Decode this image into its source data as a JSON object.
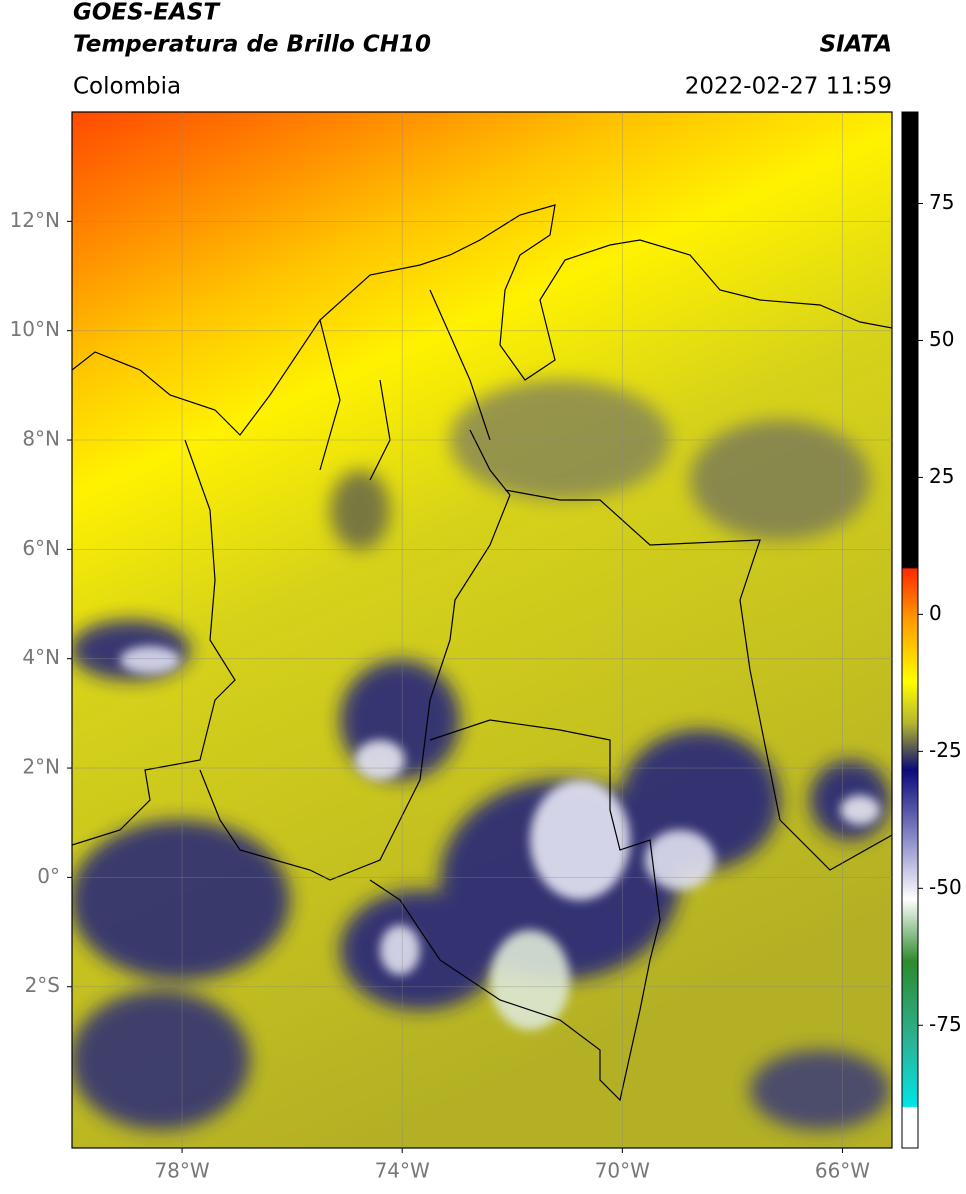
{
  "header": {
    "title": "GOES-EAST",
    "subtitle": "Temperatura de Brillo CH10",
    "source": "SIATA",
    "region": "Colombia",
    "datetime": "2022-02-27 11:59"
  },
  "map": {
    "xlim": [
      -80,
      -65.1
    ],
    "ylim": [
      -4.95,
      14
    ],
    "xticks": [
      {
        "value": -78,
        "label": "78°W"
      },
      {
        "value": -74,
        "label": "74°W"
      },
      {
        "value": -70,
        "label": "70°W"
      },
      {
        "value": -66,
        "label": "66°W"
      }
    ],
    "yticks": [
      {
        "value": 12,
        "label": "12°N"
      },
      {
        "value": 10,
        "label": "10°N"
      },
      {
        "value": 8,
        "label": "8°N"
      },
      {
        "value": 6,
        "label": "6°N"
      },
      {
        "value": 4,
        "label": "4°N"
      },
      {
        "value": 2,
        "label": "2°N"
      },
      {
        "value": 0,
        "label": "0°"
      },
      {
        "value": -2,
        "label": "2°S"
      }
    ],
    "grid": true
  },
  "colorbar": {
    "lim": [
      -97.4,
      91.7
    ],
    "ticks": [
      75,
      50,
      25,
      0,
      -25,
      -50,
      -75
    ]
  }
}
